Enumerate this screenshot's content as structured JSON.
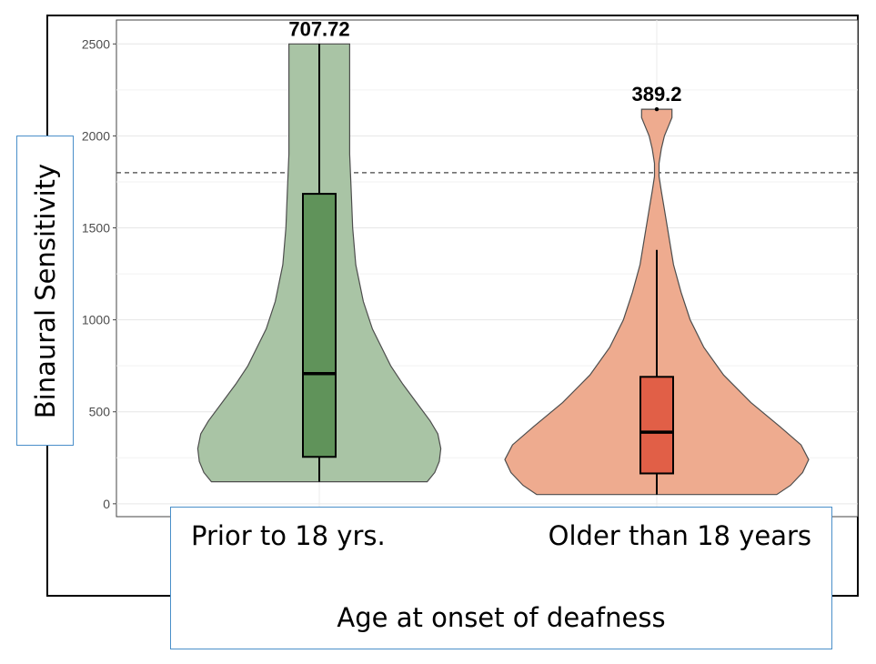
{
  "chart_data": {
    "type": "violin",
    "ylabel": "Binaural Sensitivity",
    "xlabel": "Age at onset of deafness",
    "categories": [
      "Prior to 18 yrs.",
      "Older than 18 years"
    ],
    "ylim": [
      -70,
      2630
    ],
    "yticks": [
      0,
      500,
      1000,
      1500,
      2000,
      2500
    ],
    "grid": true,
    "reference_line": 1800,
    "groups": [
      {
        "name": "Prior to 18 yrs.",
        "median": 707.72,
        "median_label": "707.72",
        "q1": 255,
        "q3": 1685,
        "whisker_low": 120,
        "whisker_high": 2500,
        "range": [
          120,
          2500
        ],
        "fill": "#a9c4a5",
        "box_fill": "#60935a",
        "density": [
          [
            120,
            0.71
          ],
          [
            170,
            0.76
          ],
          [
            230,
            0.79
          ],
          [
            300,
            0.8
          ],
          [
            380,
            0.78
          ],
          [
            450,
            0.73
          ],
          [
            550,
            0.64
          ],
          [
            650,
            0.55
          ],
          [
            750,
            0.47
          ],
          [
            850,
            0.41
          ],
          [
            950,
            0.35
          ],
          [
            1100,
            0.29
          ],
          [
            1300,
            0.24
          ],
          [
            1500,
            0.22
          ],
          [
            1700,
            0.21
          ],
          [
            1900,
            0.2
          ],
          [
            2100,
            0.2
          ],
          [
            2300,
            0.2
          ],
          [
            2500,
            0.2
          ]
        ]
      },
      {
        "name": "Older than 18 years",
        "median": 389.2,
        "median_label": "389.2",
        "q1": 165,
        "q3": 690,
        "whisker_low": 50,
        "whisker_high": 1380,
        "outliers": [
          2145
        ],
        "range": [
          50,
          2145
        ],
        "fill": "#eeab8f",
        "box_fill": "#e15f47",
        "density": [
          [
            50,
            0.79
          ],
          [
            100,
            0.88
          ],
          [
            170,
            0.96
          ],
          [
            240,
            1.0
          ],
          [
            320,
            0.95
          ],
          [
            420,
            0.81
          ],
          [
            550,
            0.62
          ],
          [
            700,
            0.44
          ],
          [
            850,
            0.31
          ],
          [
            1000,
            0.22
          ],
          [
            1150,
            0.16
          ],
          [
            1300,
            0.11
          ],
          [
            1450,
            0.08
          ],
          [
            1600,
            0.05
          ],
          [
            1700,
            0.03
          ],
          [
            1780,
            0.015
          ],
          [
            1850,
            0.015
          ],
          [
            1930,
            0.03
          ],
          [
            2000,
            0.05
          ],
          [
            2060,
            0.08
          ],
          [
            2100,
            0.1
          ],
          [
            2145,
            0.1
          ]
        ]
      }
    ]
  }
}
